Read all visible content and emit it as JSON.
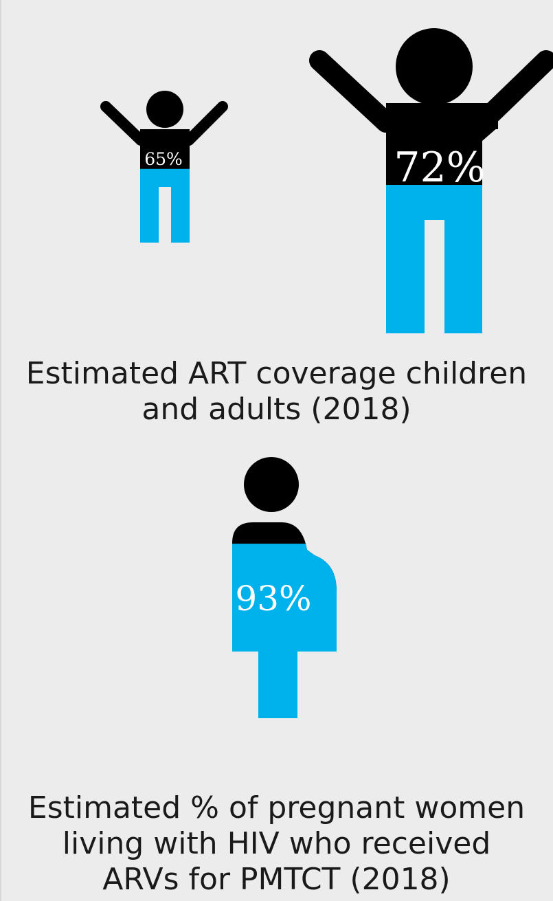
{
  "chart_data": [
    {
      "type": "pictogram",
      "title": "Estimated ART coverage children and adults (2018)",
      "title_lines": [
        "Estimated ART coverage children",
        "and adults (2018)"
      ],
      "series": [
        {
          "name": "",
          "icon": "child-figure-icon",
          "value": 65,
          "label": "65%"
        },
        {
          "name": "",
          "icon": "adult-figure-icon",
          "value": 72,
          "label": "72%"
        }
      ]
    },
    {
      "type": "pictogram",
      "title": "Estimated % of pregnant women living with HIV who received ARVs for PMTCT (2018)",
      "title_lines": [
        "Estimated % of pregnant women",
        "living with HIV who received",
        "ARVs for PMTCT (2018)"
      ],
      "series": [
        {
          "name": "",
          "icon": "pregnant-woman-icon",
          "value": 93,
          "label": "93%"
        }
      ]
    }
  ],
  "colors": {
    "fill": "#00b2ec",
    "empty": "#000000",
    "background": "#ececec",
    "text": "#1a1a1a",
    "label": "#ffffff"
  }
}
